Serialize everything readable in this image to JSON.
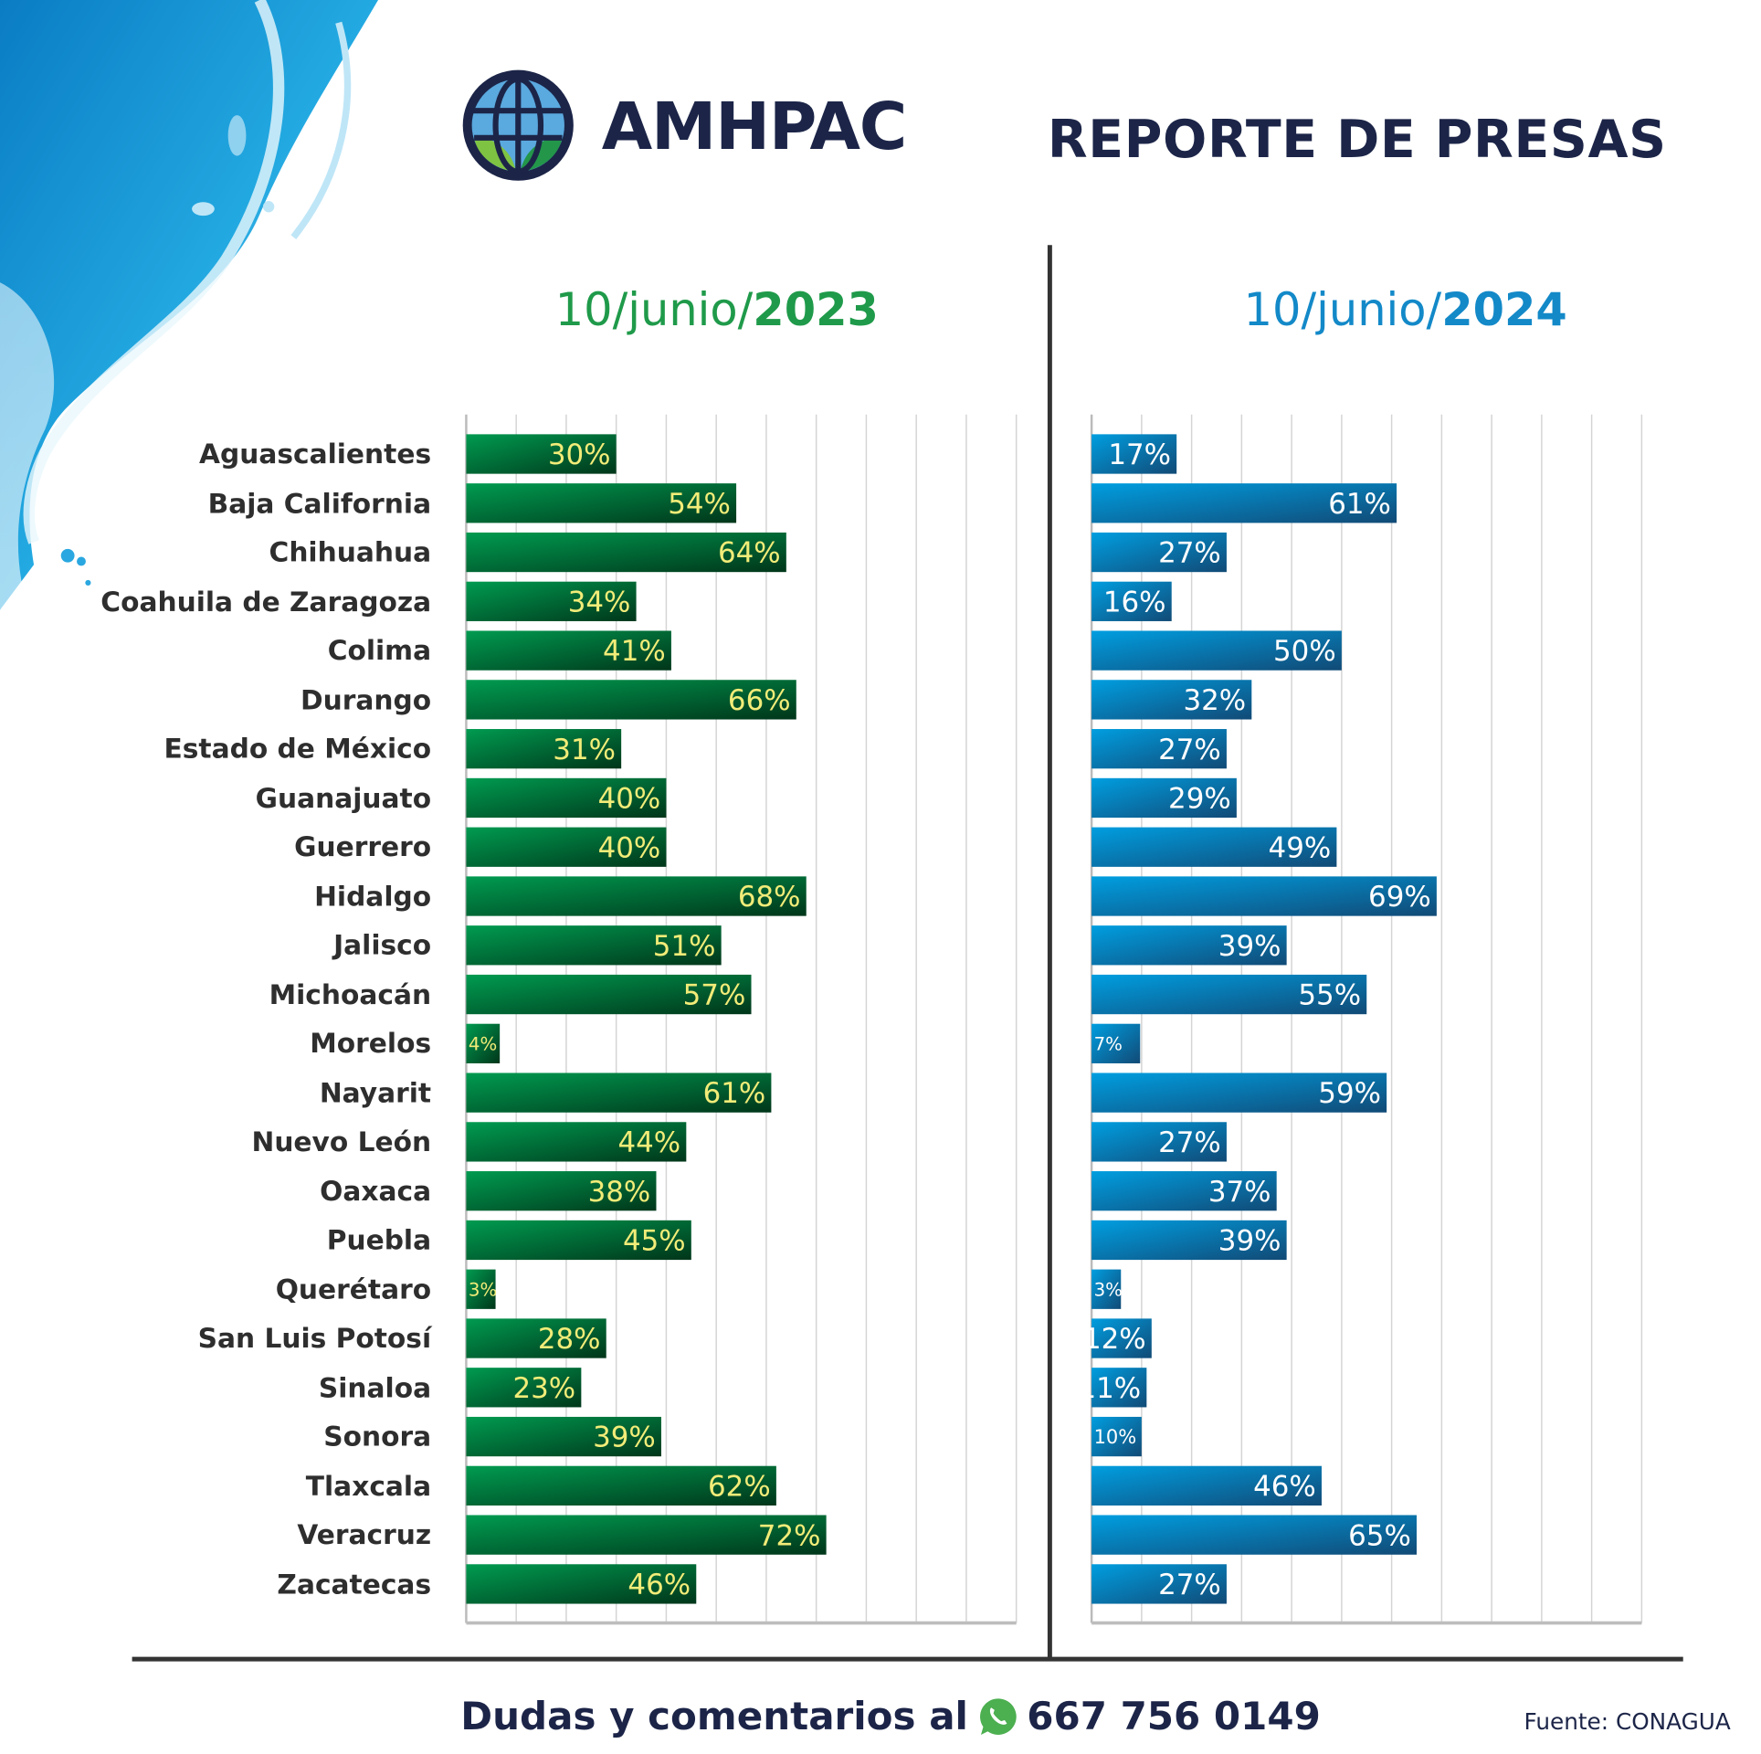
{
  "header": {
    "brand": "AMHPAC",
    "title": "REPORTE DE PRESAS"
  },
  "colors": {
    "navy": "#1c2548",
    "green_2023": "#1f9a4a",
    "blue_2024": "#1389c8",
    "label_2023": "#f2ec78",
    "label_2024": "#ffffff"
  },
  "chart_data": [
    {
      "type": "bar",
      "orientation": "horizontal",
      "title_prefix": "10/junio/",
      "title_year": "2023",
      "categories": [
        "Aguascalientes",
        "Baja California",
        "Chihuahua",
        "Coahuila de Zaragoza",
        "Colima",
        "Durango",
        "Estado de México",
        "Guanajuato",
        "Guerrero",
        "Hidalgo",
        "Jalisco",
        "Michoacán",
        "Morelos",
        "Nayarit",
        "Nuevo León",
        "Oaxaca",
        "Puebla",
        "Querétaro",
        "San Luis Potosí",
        "Sinaloa",
        "Sonora",
        "Tlaxcala",
        "Veracruz",
        "Zacatecas"
      ],
      "values": [
        30,
        54,
        64,
        34,
        41,
        66,
        31,
        40,
        40,
        68,
        51,
        57,
        4,
        61,
        44,
        38,
        45,
        3,
        28,
        23,
        39,
        62,
        72,
        46
      ],
      "labels": [
        "30%",
        "54%",
        "64%",
        "34%",
        "41%",
        "66%",
        "31%",
        "40%",
        "40%",
        "68%",
        "51%",
        "57%",
        "4%",
        "61%",
        "44%",
        "38%",
        "45%",
        "3%",
        "28%",
        "23%",
        "39%",
        "62%",
        "72%",
        "46%"
      ],
      "xlim": [
        0,
        110
      ],
      "grid": true,
      "unit": "%"
    },
    {
      "type": "bar",
      "orientation": "horizontal",
      "title_prefix": "10/junio/",
      "title_year": "2024",
      "categories": [
        "Aguascalientes",
        "Baja California",
        "Chihuahua",
        "Coahuila de Zaragoza",
        "Colima",
        "Durango",
        "Estado de México",
        "Guanajuato",
        "Guerrero",
        "Hidalgo",
        "Jalisco",
        "Michoacán",
        "Morelos",
        "Nayarit",
        "Nuevo León",
        "Oaxaca",
        "Puebla",
        "Querétaro",
        "San Luis Potosí",
        "Sinaloa",
        "Sonora",
        "Tlaxcala",
        "Veracruz",
        "Zacatecas"
      ],
      "values": [
        17,
        61,
        27,
        16,
        50,
        32,
        27,
        29,
        49,
        69,
        39,
        55,
        7,
        59,
        27,
        37,
        39,
        3,
        12,
        11,
        10,
        46,
        65,
        27
      ],
      "labels": [
        "17%",
        "61%",
        "27%",
        "16%",
        "50%",
        "32%",
        "27%",
        "29%",
        "49%",
        "69%",
        "39%",
        "55%",
        "7%",
        "59%",
        "27%",
        "37%",
        "39%",
        "3%",
        "12%",
        "11%",
        "10%",
        "46%",
        "65%",
        "27%"
      ],
      "xlim": [
        0,
        110
      ],
      "grid": true,
      "unit": "%"
    }
  ],
  "footer": {
    "contact_text": "Dudas y comentarios al",
    "phone": "667 756 0149",
    "source": "Fuente: CONAGUA"
  }
}
